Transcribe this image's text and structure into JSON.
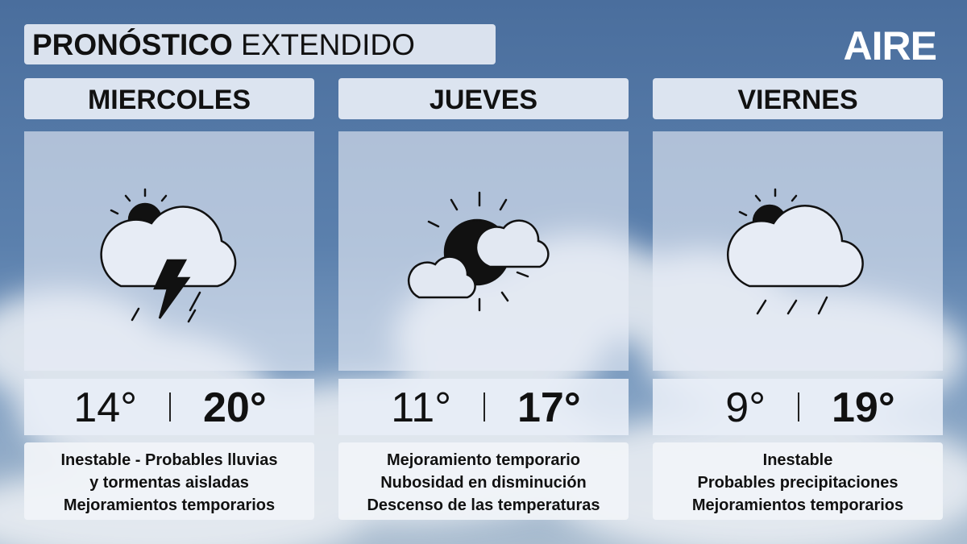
{
  "header": {
    "title_bold": "PRONÓSTICO",
    "title_regular": "EXTENDIDO",
    "logo": "AIRE"
  },
  "days": [
    {
      "name": "MIERCOLES",
      "min": "14°",
      "max": "20°",
      "description": [
        "Inestable - Probables lluvias",
        "y tormentas aisladas",
        "Mejoramientos temporarios"
      ]
    },
    {
      "name": "JUEVES",
      "min": "11°",
      "max": "17°",
      "description": [
        "Mejoramiento temporario",
        "Nubosidad en disminución",
        "Descenso de las temperaturas"
      ]
    },
    {
      "name": "VIERNES",
      "min": "9°",
      "max": "19°",
      "description": [
        "Inestable",
        "Probables precipitaciones",
        "Mejoramientos temporarios"
      ]
    }
  ]
}
